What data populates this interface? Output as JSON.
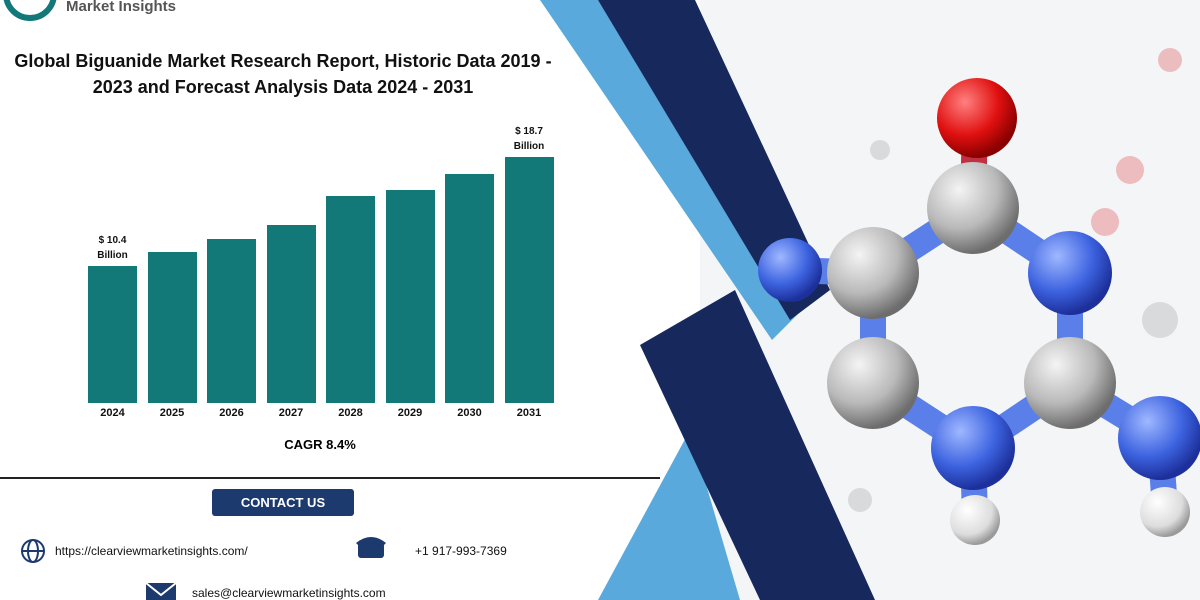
{
  "header": {
    "brand": "Market Insights"
  },
  "chart_data": {
    "type": "bar",
    "title": "Global Biguanide Market Research Report, Historic Data 2019 - 2023 and Forecast Analysis Data 2024 - 2031",
    "categories": [
      "2024",
      "2025",
      "2026",
      "2027",
      "2028",
      "2029",
      "2030",
      "2031"
    ],
    "values": [
      10.4,
      11.5,
      12.5,
      13.5,
      15.7,
      16.2,
      17.4,
      18.7
    ],
    "value_labels": [
      "$ 10.4 Billion",
      null,
      null,
      null,
      null,
      null,
      null,
      "$ 18.7 Billion"
    ],
    "color": "#137878",
    "annotation": "CAGR 8.4%"
  },
  "contact": {
    "button": "CONTACT US",
    "website": "https://clearviewmarketinsights.com/",
    "phone": "+1 917-993-7369",
    "email": "sales@clearviewmarketinsights.com"
  }
}
